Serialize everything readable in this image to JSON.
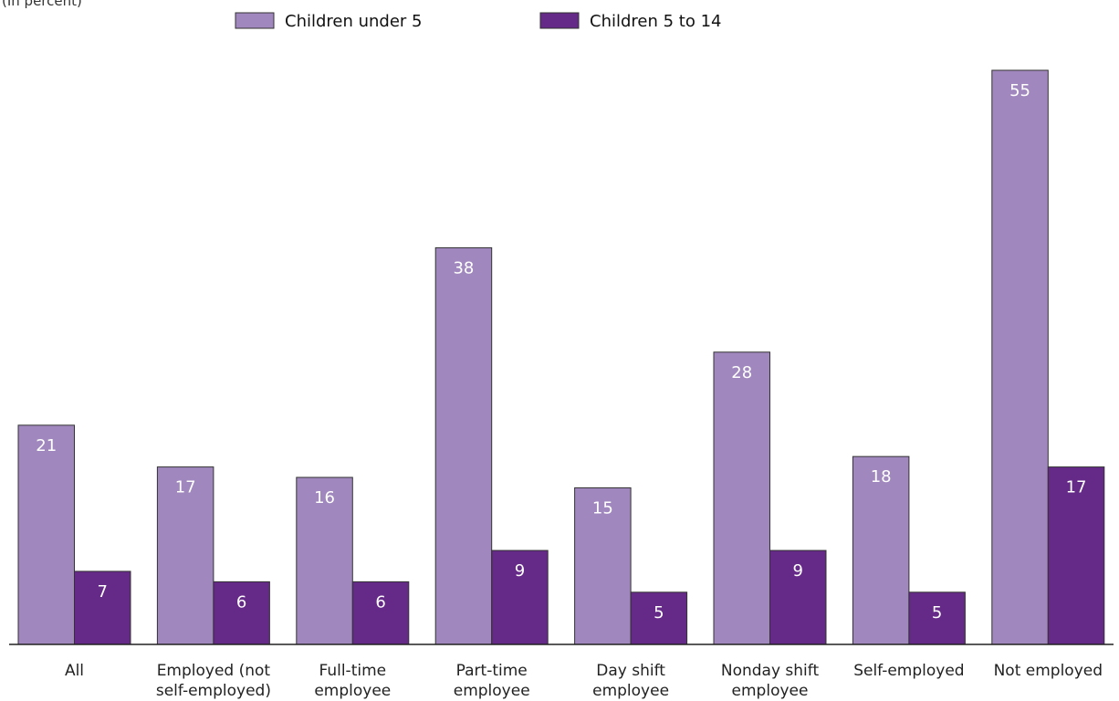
{
  "chart_data": {
    "type": "bar",
    "unit_label": "(In percent)",
    "categories": [
      [
        "All"
      ],
      [
        "Employed (not",
        "self-employed)"
      ],
      [
        "Full-time",
        "employee"
      ],
      [
        "Part-time",
        "employee"
      ],
      [
        "Day shift",
        "employee"
      ],
      [
        "Nonday shift",
        "employee"
      ],
      [
        "Self-employed"
      ],
      [
        "Not employed"
      ]
    ],
    "series": [
      {
        "name": "Children under 5",
        "color": "#a087bd",
        "values": [
          21,
          17,
          16,
          38,
          15,
          28,
          18,
          55
        ]
      },
      {
        "name": "Children 5 to 14",
        "color": "#652987",
        "values": [
          7,
          6,
          6,
          9,
          5,
          9,
          5,
          17
        ]
      }
    ],
    "ylim": [
      0,
      55
    ],
    "grid": false,
    "legend_position": "top-center"
  }
}
